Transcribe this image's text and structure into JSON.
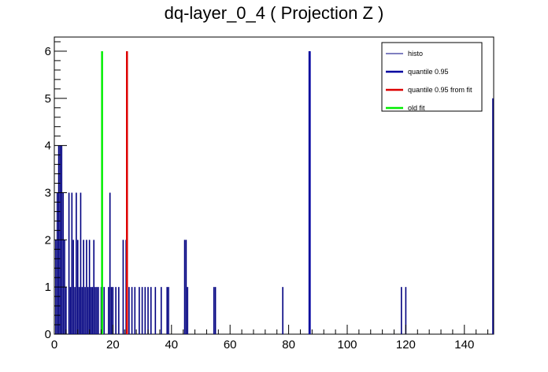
{
  "chart_data": {
    "type": "bar",
    "title": "dq-layer_0_4 ( Projection Z )",
    "xlabel": "",
    "ylabel": "",
    "xlim": [
      0,
      150
    ],
    "ylim": [
      0,
      6.3
    ],
    "x_ticks": [
      0,
      20,
      40,
      60,
      80,
      100,
      120,
      140
    ],
    "y_ticks": [
      0,
      1,
      2,
      3,
      4,
      5,
      6
    ],
    "grid": false,
    "legend_position": "top-right",
    "series": [
      {
        "name": "histo",
        "style": "histogram",
        "color": "#000080",
        "bin_width": 0.5,
        "points": [
          [
            0.5,
            2
          ],
          [
            1.0,
            3
          ],
          [
            1.5,
            4
          ],
          [
            2.0,
            4
          ],
          [
            2.5,
            4
          ],
          [
            3.0,
            3
          ],
          [
            3.5,
            2
          ],
          [
            4.0,
            1
          ],
          [
            5.0,
            3
          ],
          [
            5.5,
            1
          ],
          [
            6.0,
            3
          ],
          [
            6.5,
            2
          ],
          [
            7.0,
            1
          ],
          [
            7.5,
            3
          ],
          [
            8.0,
            2
          ],
          [
            8.5,
            1
          ],
          [
            9.0,
            3
          ],
          [
            9.5,
            1
          ],
          [
            10.0,
            2
          ],
          [
            10.5,
            1
          ],
          [
            11.0,
            2
          ],
          [
            11.5,
            1
          ],
          [
            12.0,
            2
          ],
          [
            12.5,
            1
          ],
          [
            13.0,
            1
          ],
          [
            13.5,
            2
          ],
          [
            14.0,
            1
          ],
          [
            14.5,
            1
          ],
          [
            15.0,
            1
          ],
          [
            16.0,
            1
          ],
          [
            17.0,
            1
          ],
          [
            18.5,
            1
          ],
          [
            19.0,
            3
          ],
          [
            19.5,
            1
          ],
          [
            20.0,
            1
          ],
          [
            21.0,
            1
          ],
          [
            22.0,
            1
          ],
          [
            23.5,
            2
          ],
          [
            24.5,
            2
          ],
          [
            25.5,
            1
          ],
          [
            26.5,
            1
          ],
          [
            27.5,
            1
          ],
          [
            29.0,
            1
          ],
          [
            30.0,
            1
          ],
          [
            31.0,
            1
          ],
          [
            32.0,
            1
          ],
          [
            33.0,
            1
          ],
          [
            34.5,
            1
          ],
          [
            36.5,
            1
          ],
          [
            38.5,
            1
          ],
          [
            39.0,
            1
          ],
          [
            44.5,
            2
          ],
          [
            45.0,
            2
          ],
          [
            45.5,
            1
          ],
          [
            54.5,
            1
          ],
          [
            55.0,
            1
          ],
          [
            78.0,
            1
          ],
          [
            87.0,
            6
          ],
          [
            118.5,
            1
          ],
          [
            120.0,
            1
          ],
          [
            150.0,
            5
          ]
        ]
      },
      {
        "name": "quantile 0.95",
        "style": "line",
        "color": "#0000a0",
        "x": 87.2,
        "y": 6
      },
      {
        "name": "quantile 0.95 from fit",
        "style": "line",
        "color": "#dd0000",
        "x": 24.8,
        "y": 6
      },
      {
        "name": "old fit",
        "style": "line",
        "color": "#00ee00",
        "x": 16.3,
        "y": 6
      }
    ]
  }
}
